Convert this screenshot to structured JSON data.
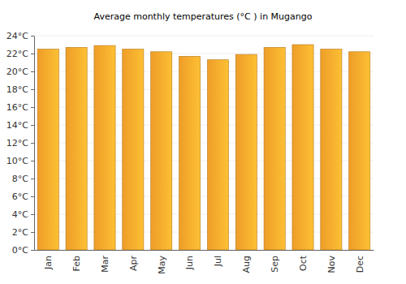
{
  "chart_data": {
    "type": "bar",
    "title": "Average monthly temperatures (°C ) in Mugango",
    "categories": [
      "Jan",
      "Feb",
      "Mar",
      "Apr",
      "May",
      "Jun",
      "Jul",
      "Aug",
      "Sep",
      "Oct",
      "Nov",
      "Dec"
    ],
    "values": [
      22.5,
      22.7,
      22.9,
      22.5,
      22.2,
      21.7,
      21.3,
      21.9,
      22.7,
      23.0,
      22.5,
      22.2
    ],
    "color": "#fba62a",
    "ylim": [
      0,
      24
    ],
    "yticks": [
      {
        "value": 0,
        "label": "0°C"
      },
      {
        "value": 2,
        "label": "2°C"
      },
      {
        "value": 4,
        "label": "4°C"
      },
      {
        "value": 6,
        "label": "6°C"
      },
      {
        "value": 8,
        "label": "8°C"
      },
      {
        "value": 10,
        "label": "10°C"
      },
      {
        "value": 12,
        "label": "12°C"
      },
      {
        "value": 14,
        "label": "14°C"
      },
      {
        "value": 16,
        "label": "16°C"
      },
      {
        "value": 18,
        "label": "18°C"
      },
      {
        "value": 20,
        "label": "20°C"
      },
      {
        "value": 22,
        "label": "22°C"
      },
      {
        "value": 24,
        "label": "24°C"
      }
    ],
    "grid": true
  }
}
